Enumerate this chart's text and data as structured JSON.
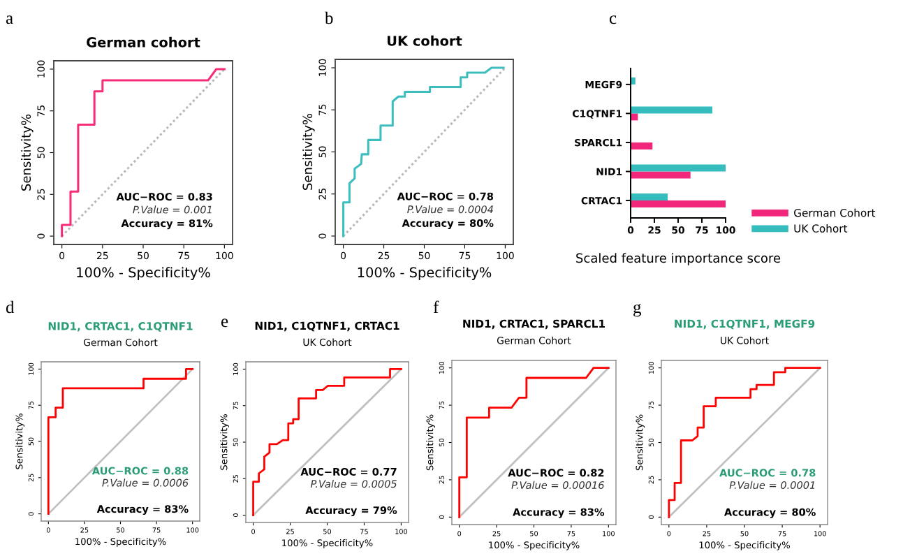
{
  "chart_data": [
    {
      "type": "line",
      "title": "German cohort",
      "xlabel": "100% - Specificity%",
      "ylabel": "Sensitivity%",
      "xlim": [
        -5,
        105
      ],
      "ylim": [
        -5,
        105
      ],
      "xticks": [
        0,
        25,
        50,
        75,
        100
      ],
      "yticks": [
        0,
        25,
        50,
        75,
        100
      ],
      "annotations": [
        "a",
        "AUC−ROC = 0.83",
        "P.Value = 0.001",
        "Accuracy = 81%"
      ],
      "series": [
        {
          "type": "line",
          "color": "#f72d7a",
          "x": [
            0,
            0,
            5.3,
            5.3,
            10,
            10,
            20,
            20,
            25,
            25,
            90,
            95,
            100
          ],
          "values": [
            0,
            6.7,
            6.7,
            26.7,
            26.7,
            66.7,
            66.7,
            86.7,
            86.7,
            93.3,
            93.3,
            100,
            100
          ]
        },
        {
          "type": "line",
          "color": "#b8b8b8",
          "line_style": "dotted",
          "x": [
            0,
            100
          ],
          "values": [
            0,
            100
          ]
        }
      ]
    },
    {
      "type": "line",
      "title": "UK cohort",
      "xlabel": "100% - Specificity%",
      "ylabel": "Sensitivity%",
      "xlim": [
        -5,
        105
      ],
      "ylim": [
        -5,
        105
      ],
      "xticks": [
        0,
        25,
        50,
        75,
        100
      ],
      "yticks": [
        0,
        25,
        50,
        75,
        100
      ],
      "annotations": [
        "b",
        "AUC−ROC = 0.78",
        "P.Value = 0.0004",
        "Accuracy = 80%"
      ],
      "series": [
        {
          "type": "line",
          "color": "#3dbdbd",
          "x": [
            0,
            0,
            3.8,
            3.8,
            7,
            7,
            11,
            11.4,
            15.4,
            15.4,
            23,
            23,
            30.5,
            30.5,
            34,
            38,
            38,
            53.5,
            53.5,
            72.5,
            72.5,
            76.5,
            76.5,
            87.5,
            91.5,
            99
          ],
          "values": [
            0,
            20,
            20,
            31.4,
            34.3,
            40,
            42.9,
            48.6,
            48.6,
            57.1,
            57.1,
            65.7,
            65.7,
            80,
            82.9,
            82.9,
            85.7,
            85.7,
            88.6,
            88.6,
            94.3,
            94.3,
            97.1,
            97.1,
            100,
            100
          ]
        },
        {
          "type": "line",
          "color": "#b8b8b8",
          "line_style": "dotted",
          "x": [
            0,
            100
          ],
          "values": [
            0,
            100
          ]
        }
      ]
    },
    {
      "type": "bar",
      "orientation": "horizontal",
      "xlabel": "Scaled feature importance score",
      "categories": [
        "MEGF9",
        "C1QTNF1",
        "SPARCL1",
        "NID1",
        "CRTAC1"
      ],
      "xlim": [
        0,
        100
      ],
      "xticks": [
        0,
        25,
        50,
        75,
        100
      ],
      "legend": "right",
      "annotations": [
        "c"
      ],
      "series": [
        {
          "name": "German Cohort",
          "color": "#f2267a",
          "values": [
            null,
            7.6,
            23,
            63,
            100
          ]
        },
        {
          "name": "UK Cohort",
          "color": "#35bcbc",
          "values": [
            5,
            86,
            null,
            100,
            39
          ]
        }
      ]
    },
    {
      "type": "line",
      "title": "NID1, CRTAC1, C1QTNF1",
      "subtitle": "German Cohort",
      "xlabel": "100% - Specificity%",
      "ylabel": "Sensitivity%",
      "xlim": [
        -5,
        105
      ],
      "ylim": [
        -5,
        105
      ],
      "xticks": [
        0,
        25,
        50,
        75,
        100
      ],
      "yticks": [
        0,
        25,
        50,
        75,
        100
      ],
      "annotations": [
        "d",
        "AUC−ROC = 0.88",
        "P.Value = 0.0006",
        "Accuracy = 83%"
      ],
      "series": [
        {
          "type": "line",
          "color": "#ff0000",
          "x": [
            0,
            0,
            5,
            5,
            10,
            10,
            66,
            66,
            95.5,
            95.5,
            100
          ],
          "values": [
            0,
            66.7,
            66.7,
            73.3,
            73.3,
            86.7,
            86.7,
            93.3,
            93.3,
            100,
            100
          ]
        },
        {
          "type": "line",
          "color": "#c0c0c0",
          "line_style": "solid",
          "x": [
            0,
            100
          ],
          "values": [
            0,
            100
          ]
        }
      ]
    },
    {
      "type": "line",
      "title": "NID1, C1QTNF1, CRTAC1",
      "subtitle": "UK Cohort",
      "xlabel": "100% - Specificity%",
      "ylabel": "Sensitivity%",
      "xlim": [
        -5,
        105
      ],
      "ylim": [
        -5,
        105
      ],
      "xticks": [
        0,
        25,
        50,
        75,
        100
      ],
      "yticks": [
        0,
        25,
        50,
        75,
        100
      ],
      "annotations": [
        "e",
        "AUC−ROC = 0.77",
        "P.Value = 0.0005",
        "Accuracy = 79%"
      ],
      "series": [
        {
          "type": "line",
          "color": "#ff0000",
          "x": [
            0,
            0,
            3.8,
            3.8,
            7.5,
            7.5,
            11,
            11,
            16,
            20,
            23.7,
            23.7,
            27,
            27,
            30.7,
            30.7,
            42.5,
            42.5,
            47,
            50.5,
            61.5,
            61.5,
            92.5,
            92.5,
            100
          ],
          "values": [
            0,
            22.9,
            22.9,
            28.6,
            31.4,
            40,
            42.9,
            48.6,
            48.6,
            51.4,
            51.4,
            62.9,
            62.9,
            65.7,
            65.7,
            80,
            80,
            85.7,
            85.7,
            88.6,
            88.6,
            94.3,
            94.3,
            100,
            100
          ]
        },
        {
          "type": "line",
          "color": "#c0c0c0",
          "line_style": "solid",
          "x": [
            0,
            100
          ],
          "values": [
            0,
            100
          ]
        }
      ]
    },
    {
      "type": "line",
      "title": "NID1, CRTAC1, SPARCL1",
      "subtitle": "German Cohort",
      "xlabel": "100% - Specificity%",
      "ylabel": "Sensitivity%",
      "xlim": [
        -5,
        105
      ],
      "ylim": [
        -5,
        105
      ],
      "xticks": [
        0,
        25,
        50,
        75,
        100
      ],
      "yticks": [
        0,
        25,
        50,
        75,
        100
      ],
      "annotations": [
        "f",
        "AUC−ROC = 0.82",
        "P.Value = 0.00016",
        "Accuracy = 83%"
      ],
      "series": [
        {
          "type": "line",
          "color": "#ff0000",
          "x": [
            0,
            0,
            5,
            5,
            20,
            20,
            35,
            40,
            45,
            45,
            85,
            90,
            100
          ],
          "values": [
            0,
            26.7,
            26.7,
            66.7,
            66.7,
            73.3,
            73.3,
            80,
            80,
            93.3,
            93.3,
            100,
            100
          ]
        },
        {
          "type": "line",
          "color": "#c0c0c0",
          "line_style": "solid",
          "x": [
            0,
            100
          ],
          "values": [
            0,
            100
          ]
        }
      ]
    },
    {
      "type": "line",
      "title": "NID1, C1QTNF1, MEGF9",
      "subtitle": "UK Cohort",
      "xlabel": "100% - Specificity%",
      "ylabel": "Sensitivity%",
      "xlim": [
        -5,
        105
      ],
      "ylim": [
        -5,
        105
      ],
      "xticks": [
        0,
        25,
        50,
        75,
        100
      ],
      "yticks": [
        0,
        25,
        50,
        75,
        100
      ],
      "annotations": [
        "g",
        "AUC−ROC = 0.78",
        "P.Value = 0.0001",
        "Accuracy = 80%"
      ],
      "series": [
        {
          "type": "line",
          "color": "#ff0000",
          "x": [
            0,
            0,
            3.8,
            3.8,
            8,
            8,
            15.5,
            19,
            19,
            23,
            23,
            31,
            31,
            54,
            54,
            58,
            58,
            69.5,
            69.5,
            77,
            77,
            100
          ],
          "values": [
            0,
            11.4,
            11.4,
            22.9,
            22.9,
            51.4,
            51.4,
            54.3,
            60,
            60,
            74.3,
            74.3,
            80,
            80,
            85.7,
            85.7,
            88.6,
            88.6,
            97.1,
            97.1,
            100,
            100
          ]
        },
        {
          "type": "line",
          "color": "#c0c0c0",
          "line_style": "solid",
          "x": [
            0,
            100
          ],
          "values": [
            0,
            100
          ]
        }
      ]
    }
  ]
}
